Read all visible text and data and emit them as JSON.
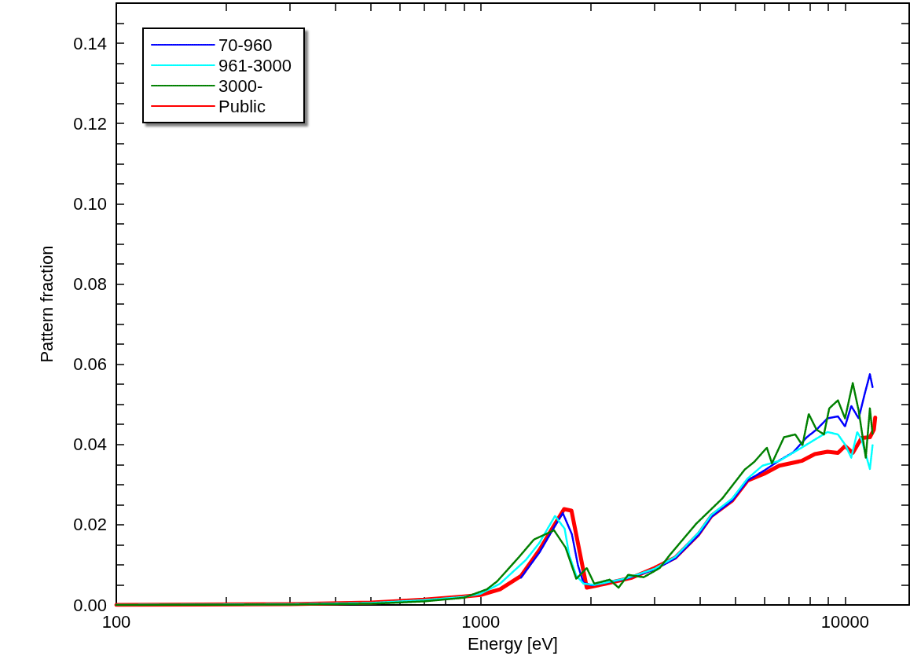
{
  "chart_data": {
    "type": "line",
    "xlabel": "Energy [eV]",
    "ylabel": "Pattern fraction",
    "log": "x",
    "grid": false,
    "legend": "top left",
    "marker": "none",
    "xlim": [
      100,
      15000
    ],
    "ylim": [
      0,
      0.15
    ],
    "xticks": [
      100,
      {
        "value": 200,
        "label": null
      },
      {
        "value": 300,
        "label": null
      },
      {
        "value": 400,
        "label": null
      },
      {
        "value": 500,
        "label": null
      },
      {
        "value": 600,
        "label": null
      },
      {
        "value": 700,
        "label": null
      },
      {
        "value": 800,
        "label": null
      },
      {
        "value": 900,
        "label": null
      },
      1000,
      {
        "value": 2000,
        "label": null
      },
      {
        "value": 3000,
        "label": null
      },
      {
        "value": 4000,
        "label": null
      },
      {
        "value": 5000,
        "label": null
      },
      {
        "value": 6000,
        "label": null
      },
      {
        "value": 7000,
        "label": null
      },
      {
        "value": 8000,
        "label": null
      },
      {
        "value": 9000,
        "label": null
      },
      10000
    ],
    "yticks": [
      {
        "value": 0,
        "label": "0.00"
      },
      {
        "value": 0.005,
        "label": null
      },
      {
        "value": 0.01,
        "label": null
      },
      {
        "value": 0.015,
        "label": null
      },
      {
        "value": 0.02,
        "label": "0.02"
      },
      {
        "value": 0.025,
        "label": null
      },
      {
        "value": 0.03,
        "label": null
      },
      {
        "value": 0.035,
        "label": null
      },
      {
        "value": 0.04,
        "label": "0.04"
      },
      {
        "value": 0.045,
        "label": null
      },
      {
        "value": 0.05,
        "label": null
      },
      {
        "value": 0.055,
        "label": null
      },
      {
        "value": 0.06,
        "label": "0.06"
      },
      {
        "value": 0.065,
        "label": null
      },
      {
        "value": 0.07,
        "label": null
      },
      {
        "value": 0.075,
        "label": null
      },
      {
        "value": 0.08,
        "label": "0.08"
      },
      {
        "value": 0.085,
        "label": null
      },
      {
        "value": 0.09,
        "label": null
      },
      {
        "value": 0.095,
        "label": null
      },
      {
        "value": 0.1,
        "label": "0.10"
      },
      {
        "value": 0.105,
        "label": null
      },
      {
        "value": 0.11,
        "label": null
      },
      {
        "value": 0.115,
        "label": null
      },
      {
        "value": 0.12,
        "label": "0.12"
      },
      {
        "value": 0.125,
        "label": null
      },
      {
        "value": 0.13,
        "label": null
      },
      {
        "value": 0.135,
        "label": null
      },
      {
        "value": 0.14,
        "label": "0.14"
      },
      {
        "value": 0.145,
        "label": null
      }
    ],
    "series": [
      {
        "name": "70-960",
        "color": "#0000ff",
        "line_style": "dotted",
        "x": [
          1290,
          1450,
          1570,
          1680,
          1780,
          1850,
          1915,
          2020,
          2500,
          3000,
          3420,
          3960,
          4300,
          4900,
          5400,
          6000,
          6600,
          7200,
          7850,
          8350,
          8950,
          9560,
          10000,
          10400,
          10900,
          11300,
          11700,
          11900
        ],
        "values": [
          0.0068,
          0.0131,
          0.0185,
          0.0229,
          0.0176,
          0.0098,
          0.0055,
          0.0049,
          0.0065,
          0.0088,
          0.0116,
          0.0174,
          0.022,
          0.026,
          0.031,
          0.0335,
          0.036,
          0.038,
          0.0418,
          0.0437,
          0.0465,
          0.047,
          0.0445,
          0.0496,
          0.0465,
          0.0523,
          0.0575,
          0.0543
        ]
      },
      {
        "name": "961-3000",
        "color": "#00ffff",
        "line_style": "dotted",
        "x": [
          100,
          300,
          500,
          700,
          900,
          1000,
          1130,
          1330,
          1450,
          1600,
          1700,
          1750,
          1830,
          1915,
          2050,
          2500,
          3000,
          3420,
          3960,
          4300,
          4900,
          5400,
          5930,
          6600,
          7600,
          8260,
          8950,
          9560,
          10000,
          10400,
          10800,
          11100,
          11700,
          11900
        ],
        "values": [
          0,
          0.0002,
          0.0005,
          0.0012,
          0.002,
          0.0028,
          0.0053,
          0.0112,
          0.0155,
          0.0222,
          0.019,
          0.0124,
          0.0073,
          0.0053,
          0.005,
          0.0066,
          0.009,
          0.012,
          0.018,
          0.0225,
          0.0265,
          0.0315,
          0.0347,
          0.0359,
          0.0392,
          0.0412,
          0.0431,
          0.0425,
          0.04,
          0.0367,
          0.0431,
          0.0412,
          0.0339,
          0.0398
        ]
      },
      {
        "name": "3000-",
        "color": "#008000",
        "line_style": "dotted",
        "x": [
          100,
          300,
          500,
          700,
          900,
          1040,
          1110,
          1270,
          1400,
          1590,
          1710,
          1830,
          1955,
          2050,
          2260,
          2390,
          2540,
          2800,
          3100,
          3300,
          3900,
          4600,
          5300,
          5640,
          6100,
          6300,
          6800,
          7300,
          7640,
          7950,
          8350,
          8750,
          9050,
          9560,
          10000,
          10500,
          10900,
          11400,
          11700,
          11900
        ],
        "values": [
          0,
          0.0001,
          0.0003,
          0.0009,
          0.0018,
          0.0039,
          0.0059,
          0.0118,
          0.0163,
          0.0186,
          0.0143,
          0.0065,
          0.0092,
          0.0053,
          0.0063,
          0.0043,
          0.0075,
          0.0069,
          0.0092,
          0.0124,
          0.0202,
          0.0265,
          0.0337,
          0.0357,
          0.0392,
          0.0353,
          0.0418,
          0.0425,
          0.0398,
          0.0476,
          0.0437,
          0.0425,
          0.049,
          0.051,
          0.0465,
          0.0553,
          0.0484,
          0.0367,
          0.049,
          0.0425
        ]
      },
      {
        "name": "Public",
        "color": "#ff0000",
        "line_style": "solid",
        "x": [
          100,
          300,
          500,
          700,
          900,
          1000,
          1130,
          1290,
          1450,
          1570,
          1694,
          1775,
          1955,
          2200,
          2600,
          3000,
          3420,
          3960,
          4300,
          4900,
          5400,
          6000,
          6600,
          7600,
          8260,
          8950,
          9560,
          10000,
          10500,
          11100,
          11700,
          12000,
          12100
        ],
        "values": [
          0,
          0.0002,
          0.0006,
          0.0013,
          0.0021,
          0.0025,
          0.0039,
          0.0072,
          0.0137,
          0.019,
          0.0239,
          0.0235,
          0.0043,
          0.0053,
          0.0068,
          0.0092,
          0.0118,
          0.0176,
          0.0222,
          0.026,
          0.031,
          0.0327,
          0.0347,
          0.0359,
          0.0376,
          0.0382,
          0.0379,
          0.0396,
          0.0379,
          0.0416,
          0.0418,
          0.0437,
          0.0467
        ]
      }
    ]
  }
}
